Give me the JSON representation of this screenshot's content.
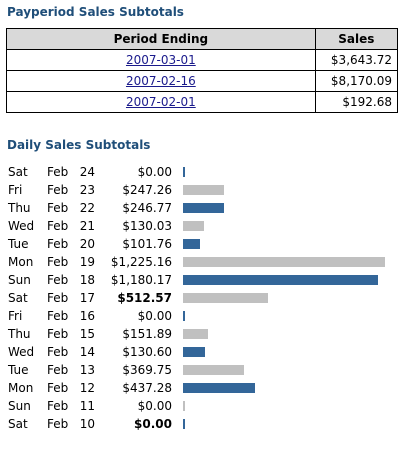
{
  "payperiod": {
    "title": "Payperiod Sales Subtotals",
    "headers": [
      "Period Ending",
      "Sales"
    ],
    "rows": [
      {
        "date": "2007-03-01",
        "sales": "$3,643.72"
      },
      {
        "date": "2007-02-16",
        "sales": "$8,170.09"
      },
      {
        "date": "2007-02-01",
        "sales": "$192.68"
      }
    ]
  },
  "daily": {
    "title": "Daily Sales Subtotals",
    "max_value": 1225.16,
    "rows": [
      {
        "dow": "Sat",
        "mon": "Feb",
        "day": "24",
        "amount": "$0.00",
        "value": 0,
        "color": "blue",
        "bold": false
      },
      {
        "dow": "Fri",
        "mon": "Feb",
        "day": "23",
        "amount": "$247.26",
        "value": 247.26,
        "color": "gray",
        "bold": false
      },
      {
        "dow": "Thu",
        "mon": "Feb",
        "day": "22",
        "amount": "$246.77",
        "value": 246.77,
        "color": "blue",
        "bold": false
      },
      {
        "dow": "Wed",
        "mon": "Feb",
        "day": "21",
        "amount": "$130.03",
        "value": 130.03,
        "color": "gray",
        "bold": false
      },
      {
        "dow": "Tue",
        "mon": "Feb",
        "day": "20",
        "amount": "$101.76",
        "value": 101.76,
        "color": "blue",
        "bold": false
      },
      {
        "dow": "Mon",
        "mon": "Feb",
        "day": "19",
        "amount": "$1,225.16",
        "value": 1225.16,
        "color": "gray",
        "bold": false
      },
      {
        "dow": "Sun",
        "mon": "Feb",
        "day": "18",
        "amount": "$1,180.17",
        "value": 1180.17,
        "color": "blue",
        "bold": false
      },
      {
        "dow": "Sat",
        "mon": "Feb",
        "day": "17",
        "amount": "$512.57",
        "value": 512.57,
        "color": "gray",
        "bold": true
      },
      {
        "dow": "Fri",
        "mon": "Feb",
        "day": "16",
        "amount": "$0.00",
        "value": 0,
        "color": "blue",
        "bold": false
      },
      {
        "dow": "Thu",
        "mon": "Feb",
        "day": "15",
        "amount": "$151.89",
        "value": 151.89,
        "color": "gray",
        "bold": false
      },
      {
        "dow": "Wed",
        "mon": "Feb",
        "day": "14",
        "amount": "$130.60",
        "value": 130.6,
        "color": "blue",
        "bold": false
      },
      {
        "dow": "Tue",
        "mon": "Feb",
        "day": "13",
        "amount": "$369.75",
        "value": 369.75,
        "color": "gray",
        "bold": false
      },
      {
        "dow": "Mon",
        "mon": "Feb",
        "day": "12",
        "amount": "$437.28",
        "value": 437.28,
        "color": "blue",
        "bold": false
      },
      {
        "dow": "Sun",
        "mon": "Feb",
        "day": "11",
        "amount": "$0.00",
        "value": 0,
        "color": "gray",
        "bold": false
      },
      {
        "dow": "Sat",
        "mon": "Feb",
        "day": "10",
        "amount": "$0.00",
        "value": 0,
        "color": "blue",
        "bold": true
      }
    ]
  },
  "colors": {
    "title": "#1f4e79",
    "bar_blue": "#336699",
    "bar_gray": "#c0c0c0",
    "link": "#1a1a8c"
  }
}
